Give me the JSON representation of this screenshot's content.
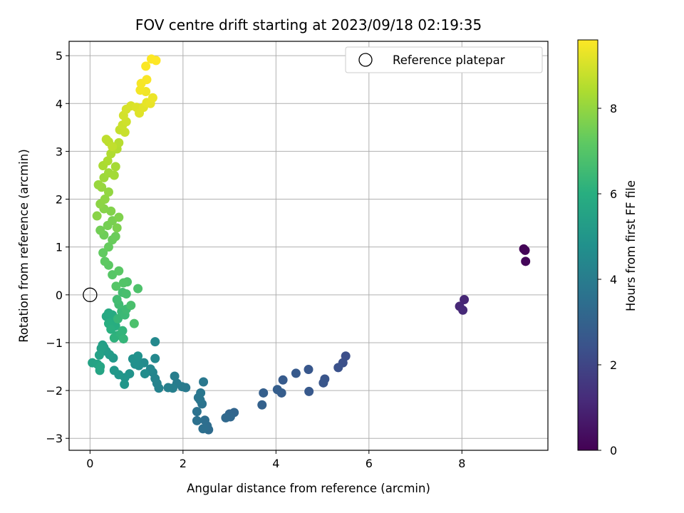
{
  "chart_data": {
    "type": "scatter",
    "title": "FOV centre drift starting at 2023/09/18 02:19:35",
    "xlabel": "Angular distance from reference (arcmin)",
    "ylabel": "Rotation from reference (arcmin)",
    "xlim": [
      -0.45,
      9.85
    ],
    "ylim": [
      -3.25,
      5.3
    ],
    "xticks": [
      0,
      2,
      4,
      6,
      8
    ],
    "yticks": [
      -3,
      -2,
      -1,
      0,
      1,
      2,
      3,
      4,
      5
    ],
    "grid": true,
    "legend": {
      "position": "top-right",
      "entries": [
        "Reference platepar"
      ]
    },
    "reference_point": {
      "x": 0,
      "y": 0
    },
    "colorbar": {
      "label": "Hours from first FF file",
      "colormap": "viridis",
      "range": [
        0,
        9.6
      ],
      "ticks": [
        0,
        2,
        4,
        6,
        8
      ]
    },
    "series": [
      {
        "points": [
          [
            9.33,
            0.96,
            0.05
          ],
          [
            9.36,
            0.93,
            0.08
          ],
          [
            9.37,
            0.7,
            0.15
          ],
          [
            8.05,
            -0.1,
            1.05
          ],
          [
            7.95,
            -0.24,
            1.1
          ],
          [
            8.02,
            -0.32,
            1.15
          ],
          [
            5.5,
            -1.28,
            2.3
          ],
          [
            5.44,
            -1.42,
            2.35
          ],
          [
            5.34,
            -1.52,
            2.4
          ],
          [
            5.05,
            -1.76,
            2.5
          ],
          [
            5.02,
            -1.84,
            2.55
          ],
          [
            4.7,
            -1.56,
            2.6
          ],
          [
            4.71,
            -2.02,
            2.65
          ],
          [
            4.43,
            -1.64,
            2.7
          ],
          [
            4.15,
            -1.78,
            2.75
          ],
          [
            4.12,
            -2.05,
            2.8
          ],
          [
            4.03,
            -1.98,
            2.85
          ],
          [
            3.73,
            -2.05,
            2.9
          ],
          [
            3.7,
            -2.3,
            2.95
          ],
          [
            3.1,
            -2.46,
            3.1
          ],
          [
            3.0,
            -2.49,
            3.15
          ],
          [
            3.02,
            -2.55,
            3.2
          ],
          [
            2.92,
            -2.57,
            3.25
          ],
          [
            2.55,
            -2.82,
            3.35
          ],
          [
            2.52,
            -2.74,
            3.4
          ],
          [
            2.47,
            -2.62,
            3.45
          ],
          [
            2.43,
            -2.8,
            3.5
          ],
          [
            2.3,
            -2.63,
            3.55
          ],
          [
            2.3,
            -2.44,
            3.6
          ],
          [
            2.41,
            -2.28,
            3.65
          ],
          [
            2.37,
            -2.2,
            3.7
          ],
          [
            2.33,
            -2.15,
            3.75
          ],
          [
            2.38,
            -2.05,
            3.8
          ],
          [
            2.44,
            -1.82,
            3.85
          ],
          [
            2.06,
            -1.94,
            3.9
          ],
          [
            1.98,
            -1.92,
            3.95
          ],
          [
            1.87,
            -1.85,
            4.0
          ],
          [
            1.82,
            -1.7,
            4.05
          ],
          [
            1.78,
            -1.95,
            4.1
          ],
          [
            1.68,
            -1.94,
            4.15
          ],
          [
            1.48,
            -1.95,
            4.2
          ],
          [
            1.44,
            -1.85,
            4.25
          ],
          [
            1.4,
            -1.75,
            4.3
          ],
          [
            1.35,
            -1.62,
            4.35
          ],
          [
            1.3,
            -1.55,
            4.4
          ],
          [
            1.4,
            -1.33,
            4.45
          ],
          [
            1.4,
            -0.98,
            4.5
          ],
          [
            1.16,
            -1.42,
            4.55
          ],
          [
            1.18,
            -1.65,
            4.6
          ],
          [
            1.05,
            -1.48,
            4.65
          ],
          [
            1.0,
            -1.4,
            4.7
          ],
          [
            0.97,
            -1.45,
            4.75
          ],
          [
            0.92,
            -1.34,
            4.8
          ],
          [
            1.03,
            -1.28,
            4.85
          ],
          [
            0.85,
            -1.65,
            4.9
          ],
          [
            0.75,
            -1.73,
            4.95
          ],
          [
            0.74,
            -1.87,
            5.0
          ],
          [
            0.62,
            -1.67,
            5.05
          ],
          [
            0.52,
            -1.58,
            5.1
          ],
          [
            0.5,
            -1.32,
            5.15
          ],
          [
            0.42,
            -1.25,
            5.2
          ],
          [
            0.35,
            -1.18,
            5.25
          ],
          [
            0.3,
            -1.1,
            5.3
          ],
          [
            0.27,
            -1.05,
            5.35
          ],
          [
            0.24,
            -1.12,
            5.4
          ],
          [
            0.2,
            -1.26,
            5.45
          ],
          [
            0.05,
            -1.42,
            5.5
          ],
          [
            0.16,
            -1.45,
            5.55
          ],
          [
            0.21,
            -1.58,
            5.6
          ],
          [
            0.22,
            -1.5,
            5.65
          ],
          [
            0.35,
            -0.45,
            5.75
          ],
          [
            0.4,
            -0.38,
            5.8
          ],
          [
            0.48,
            -0.42,
            5.85
          ],
          [
            0.52,
            -0.55,
            5.9
          ],
          [
            0.55,
            -0.65,
            5.95
          ],
          [
            0.4,
            -0.6,
            6.0
          ],
          [
            0.45,
            -0.72,
            6.05
          ],
          [
            0.58,
            -0.85,
            6.1
          ],
          [
            0.52,
            -0.9,
            6.15
          ],
          [
            0.66,
            -0.82,
            6.2
          ],
          [
            0.7,
            -0.75,
            6.25
          ],
          [
            0.72,
            -0.92,
            6.3
          ],
          [
            0.6,
            -0.5,
            6.35
          ],
          [
            0.68,
            -0.35,
            6.4
          ],
          [
            0.75,
            -0.42,
            6.45
          ],
          [
            0.78,
            -0.3,
            6.5
          ],
          [
            0.62,
            -0.2,
            6.55
          ],
          [
            0.58,
            -0.1,
            6.6
          ],
          [
            0.7,
            0.05,
            6.65
          ],
          [
            0.78,
            0.02,
            6.7
          ],
          [
            0.88,
            -0.22,
            6.75
          ],
          [
            0.95,
            -0.6,
            6.8
          ],
          [
            1.03,
            0.13,
            6.85
          ],
          [
            0.8,
            0.27,
            6.9
          ],
          [
            0.72,
            0.25,
            6.95
          ],
          [
            0.56,
            0.18,
            7.0
          ],
          [
            0.48,
            0.42,
            7.05
          ],
          [
            0.62,
            0.5,
            7.1
          ],
          [
            0.4,
            0.62,
            7.15
          ],
          [
            0.32,
            0.7,
            7.2
          ],
          [
            0.28,
            0.88,
            7.25
          ],
          [
            0.4,
            1.0,
            7.3
          ],
          [
            0.48,
            1.15,
            7.35
          ],
          [
            0.55,
            1.22,
            7.4
          ],
          [
            0.3,
            1.25,
            7.45
          ],
          [
            0.22,
            1.35,
            7.5
          ],
          [
            0.38,
            1.45,
            7.55
          ],
          [
            0.48,
            1.55,
            7.6
          ],
          [
            0.58,
            1.4,
            7.65
          ],
          [
            0.62,
            1.62,
            7.7
          ],
          [
            0.45,
            1.75,
            7.75
          ],
          [
            0.3,
            1.8,
            7.8
          ],
          [
            0.15,
            1.65,
            7.85
          ],
          [
            0.22,
            1.9,
            7.9
          ],
          [
            0.32,
            2.0,
            7.95
          ],
          [
            0.4,
            2.15,
            8.0
          ],
          [
            0.25,
            2.25,
            8.05
          ],
          [
            0.18,
            2.3,
            8.1
          ],
          [
            0.3,
            2.45,
            8.15
          ],
          [
            0.4,
            2.55,
            8.2
          ],
          [
            0.52,
            2.5,
            8.25
          ],
          [
            0.55,
            2.68,
            8.3
          ],
          [
            0.28,
            2.7,
            8.35
          ],
          [
            0.38,
            2.8,
            8.4
          ],
          [
            0.45,
            2.95,
            8.45
          ],
          [
            0.58,
            3.05,
            8.5
          ],
          [
            0.62,
            3.18,
            8.55
          ],
          [
            0.4,
            3.2,
            8.6
          ],
          [
            0.35,
            3.25,
            8.65
          ],
          [
            0.48,
            3.1,
            8.7
          ],
          [
            0.64,
            3.45,
            8.75
          ],
          [
            0.75,
            3.4,
            8.8
          ],
          [
            0.7,
            3.55,
            8.85
          ],
          [
            0.78,
            3.62,
            8.9
          ],
          [
            0.72,
            3.75,
            8.95
          ],
          [
            0.78,
            3.88,
            9.0
          ],
          [
            0.88,
            3.95,
            9.05
          ],
          [
            1.0,
            3.92,
            9.1
          ],
          [
            1.06,
            3.8,
            9.15
          ],
          [
            1.15,
            3.92,
            9.2
          ],
          [
            1.22,
            4.02,
            9.25
          ],
          [
            1.3,
            4.0,
            9.3
          ],
          [
            1.35,
            4.12,
            9.35
          ],
          [
            1.2,
            4.25,
            9.4
          ],
          [
            1.08,
            4.28,
            9.45
          ],
          [
            1.1,
            4.42,
            9.5
          ],
          [
            1.22,
            4.5,
            9.52
          ],
          [
            1.2,
            4.78,
            9.55
          ],
          [
            1.32,
            4.93,
            9.58
          ],
          [
            1.42,
            4.9,
            9.6
          ]
        ]
      }
    ]
  }
}
